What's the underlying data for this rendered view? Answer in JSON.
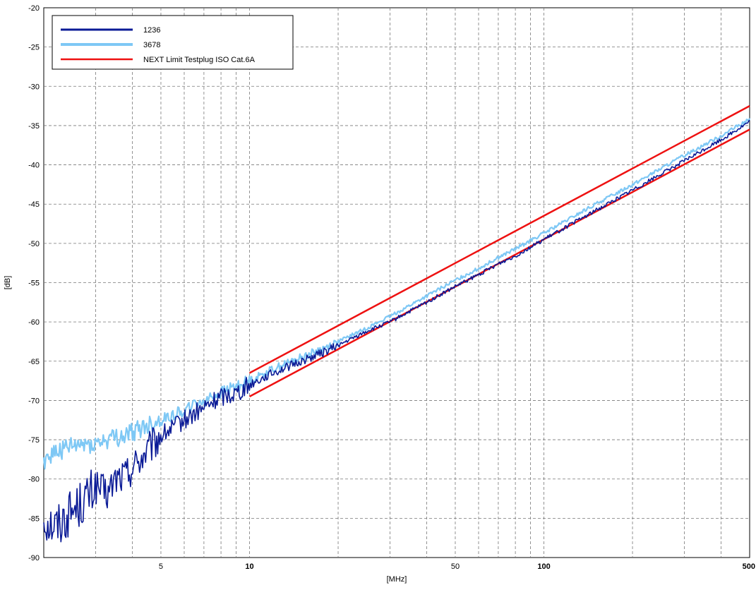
{
  "chart_data": {
    "type": "line",
    "xlabel": "[MHz]",
    "ylabel": "[dB]",
    "xscale": "log",
    "xlim": [
      2,
      500
    ],
    "ylim": [
      -90,
      -20
    ],
    "yticks": [
      -20,
      -25,
      -30,
      -35,
      -40,
      -45,
      -50,
      -55,
      -60,
      -65,
      -70,
      -75,
      -80,
      -85,
      -90
    ],
    "xtick_labels": [
      {
        "value": 5,
        "label": "5",
        "bold": false
      },
      {
        "value": 10,
        "label": "10",
        "bold": true
      },
      {
        "value": 50,
        "label": "50",
        "bold": false
      },
      {
        "value": 100,
        "label": "100",
        "bold": true
      },
      {
        "value": 500,
        "label": "500",
        "bold": true
      }
    ],
    "grid": true,
    "legend_position": "top-left",
    "series": [
      {
        "name": "1236",
        "color": "#0a1a96",
        "x": [
          2,
          2.2,
          2.5,
          2.8,
          3,
          3.3,
          3.5,
          3.8,
          4,
          4.5,
          5,
          5.5,
          6,
          7,
          8,
          9,
          10,
          12,
          15,
          18,
          20,
          25,
          30,
          40,
          50,
          60,
          70,
          80,
          100,
          150,
          200,
          300,
          400,
          500
        ],
        "y": [
          -85,
          -86,
          -84,
          -82.5,
          -81,
          -82,
          -80,
          -79.5,
          -78.5,
          -76.5,
          -74.5,
          -73.5,
          -72.5,
          -71,
          -69.5,
          -69,
          -68,
          -66.5,
          -65,
          -63.8,
          -63,
          -61.2,
          -60,
          -57.5,
          -55.5,
          -54,
          -52.6,
          -51.6,
          -49.5,
          -45.8,
          -43.2,
          -39.5,
          -36.8,
          -34.5
        ]
      },
      {
        "name": "3678",
        "color": "#7ec8f5",
        "x": [
          2,
          2.2,
          2.5,
          2.8,
          3,
          3.3,
          3.5,
          3.8,
          4,
          4.5,
          5,
          5.5,
          6,
          7,
          8,
          9,
          10,
          12,
          15,
          18,
          20,
          25,
          30,
          40,
          50,
          60,
          70,
          80,
          100,
          150,
          200,
          300,
          400,
          500
        ],
        "y": [
          -77.5,
          -76.5,
          -76,
          -75.5,
          -75.5,
          -75,
          -74.8,
          -74.5,
          -74,
          -73.2,
          -72.5,
          -71.8,
          -71.2,
          -70,
          -69,
          -68.2,
          -67.5,
          -66,
          -64.5,
          -63.3,
          -62.5,
          -60.8,
          -59.3,
          -56.7,
          -54.7,
          -53.2,
          -51.8,
          -50.7,
          -48.7,
          -45,
          -42.5,
          -38.8,
          -36.3,
          -34.2
        ]
      },
      {
        "name": "NEXT Limit Testplug ISO Cat.6A",
        "color": "#ee1111",
        "segments": [
          {
            "x": [
              10,
              500
            ],
            "y": [
              -66.5,
              -32.5
            ]
          },
          {
            "x": [
              10,
              500
            ],
            "y": [
              -69.5,
              -35.5
            ]
          }
        ]
      }
    ]
  }
}
